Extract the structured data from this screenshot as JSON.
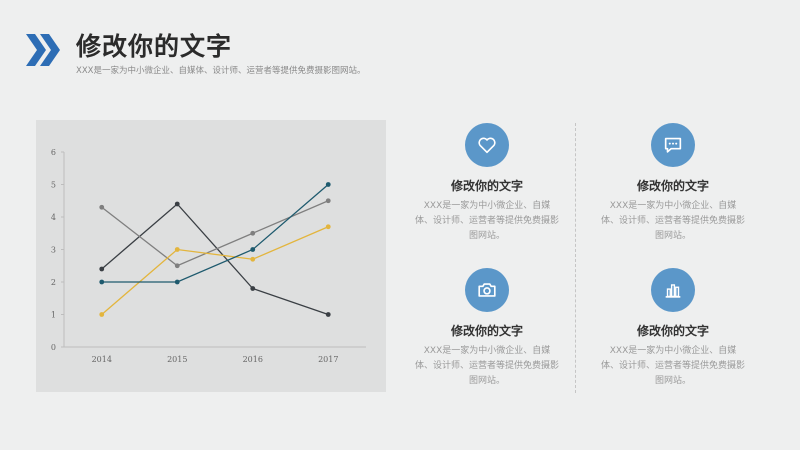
{
  "header": {
    "title": "修改你的文字",
    "subtitle": "XXX是一家为中小微企业、自媒体、设计师、运营者等提供免费摄影图网站。",
    "icon": "double-chevron-right-icon",
    "accent_color": "#2d6db5"
  },
  "chart_data": {
    "type": "line",
    "categories": [
      "2014",
      "2015",
      "2016",
      "2017"
    ],
    "ylim": [
      0,
      6
    ],
    "yticks": [
      "0",
      "1",
      "2",
      "3",
      "4",
      "5",
      "6"
    ],
    "xlabel": "",
    "ylabel": "",
    "grid": false,
    "series": [
      {
        "values": [
          2.4,
          4.4,
          1.8,
          1.0
        ],
        "color": "#3a3f44"
      },
      {
        "values": [
          4.3,
          2.5,
          3.5,
          4.5
        ],
        "color": "#7f7f7f"
      },
      {
        "values": [
          1.0,
          3.0,
          2.7,
          3.7
        ],
        "color": "#e3b53d"
      },
      {
        "values": [
          2.0,
          2.0,
          3.0,
          5.0
        ],
        "color": "#1e5a6e"
      }
    ]
  },
  "cards": [
    {
      "icon": "heart-icon",
      "title": "修改你的文字",
      "body": "XXX是一家为中小微企业、自媒体、设计师、运营者等提供免费摄影图网站。"
    },
    {
      "icon": "chat-bubble-icon",
      "title": "修改你的文字",
      "body": "XXX是一家为中小微企业、自媒体、设计师、运营者等提供免费摄影图网站。"
    },
    {
      "icon": "camera-icon",
      "title": "修改你的文字",
      "body": "XXX是一家为中小微企业、自媒体、设计师、运营者等提供免费摄影图网站。"
    },
    {
      "icon": "bar-chart-icon",
      "title": "修改你的文字",
      "body": "XXX是一家为中小微企业、自媒体、设计师、运营者等提供免费摄影图网站。"
    }
  ]
}
